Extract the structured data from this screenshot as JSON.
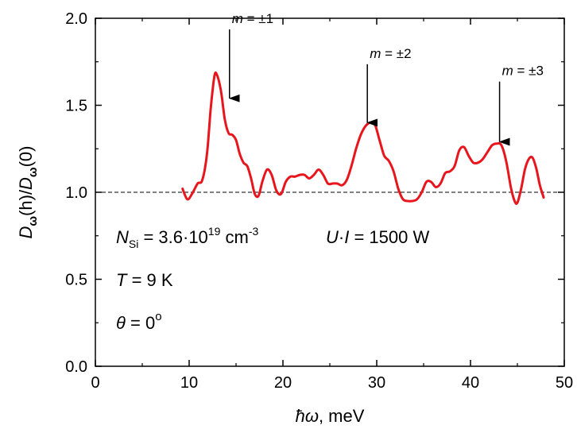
{
  "chart_data": {
    "type": "line",
    "xlabel": {
      "hbar": "ħω",
      "rest": ", meV"
    },
    "ylabel": {
      "D1": "D",
      "sub1": "ω",
      "mid": "(h)/",
      "D2": "D",
      "sub2": "ω",
      "end": "(0)"
    },
    "xlim": [
      0,
      50
    ],
    "ylim": [
      0.0,
      2.0
    ],
    "xticks": [
      "0",
      "10",
      "20",
      "30",
      "40",
      "50"
    ],
    "yticks": [
      "0.0",
      "0.5",
      "1.0",
      "1.5",
      "2.0"
    ],
    "reference_line": {
      "y": 1.0,
      "style": "dashed"
    },
    "grid": false,
    "series_color": "#e8161c",
    "series": [
      {
        "x": [
          9.3,
          9.8,
          10.3,
          10.9,
          11.4,
          11.9,
          12.3,
          12.7,
          13.0,
          13.4,
          13.8,
          14.2,
          14.6,
          15.0,
          15.4,
          15.8,
          16.2,
          16.6,
          17.0,
          17.4,
          17.8,
          18.3,
          18.8,
          19.3,
          19.8,
          20.3,
          20.8,
          21.3,
          21.8,
          22.3,
          22.8,
          23.3,
          23.8,
          24.3,
          24.8,
          25.3,
          25.8,
          26.3,
          26.8,
          27.3,
          27.8,
          28.3,
          28.8,
          29.3,
          29.8,
          30.3,
          30.8,
          31.3,
          31.8,
          32.3,
          32.8,
          33.3,
          33.8,
          34.3,
          34.8,
          35.3,
          35.8,
          36.3,
          36.8,
          37.3,
          37.8,
          38.3,
          38.8,
          39.3,
          39.8,
          40.3,
          40.8,
          41.3,
          41.8,
          42.3,
          42.8,
          43.3,
          43.8,
          44.3,
          44.7,
          45.0,
          45.4,
          45.8,
          46.2,
          46.6,
          47.0,
          47.4,
          47.8
        ],
        "y": [
          1.02,
          0.96,
          0.99,
          1.05,
          1.07,
          1.22,
          1.48,
          1.67,
          1.67,
          1.58,
          1.42,
          1.34,
          1.33,
          1.3,
          1.22,
          1.17,
          1.15,
          1.08,
          0.99,
          0.98,
          1.06,
          1.13,
          1.1,
          1.01,
          0.99,
          1.06,
          1.09,
          1.09,
          1.1,
          1.1,
          1.08,
          1.1,
          1.13,
          1.1,
          1.05,
          1.05,
          1.05,
          1.04,
          1.07,
          1.15,
          1.25,
          1.33,
          1.38,
          1.4,
          1.39,
          1.3,
          1.21,
          1.18,
          1.12,
          1.02,
          0.96,
          0.95,
          0.95,
          0.96,
          1.0,
          1.06,
          1.06,
          1.03,
          1.05,
          1.11,
          1.12,
          1.15,
          1.24,
          1.26,
          1.21,
          1.17,
          1.17,
          1.19,
          1.23,
          1.27,
          1.28,
          1.27,
          1.18,
          1.03,
          0.95,
          0.94,
          1.02,
          1.13,
          1.19,
          1.2,
          1.14,
          1.04,
          0.97
        ]
      }
    ],
    "arrows": [
      {
        "m": "m",
        "eq": " = ±1",
        "x": 14.3,
        "y_tip": 1.54,
        "y_tail": 2.0
      },
      {
        "m": "m",
        "eq": " = ±2",
        "x": 29.0,
        "y_tip": 1.4,
        "y_tail": 1.8
      },
      {
        "m": "m",
        "eq": " = ±3",
        "x": 43.1,
        "y_tip": 1.29,
        "y_tail": 1.7
      }
    ],
    "annotations": {
      "nsi": {
        "N": "N",
        "sub": "Si",
        "value": " = 3.6·10",
        "exp": "19",
        "unit": " cm",
        "unit_exp": "-3"
      },
      "ui": {
        "U": "U",
        "dot": "·",
        "I": "I",
        "value": " = 1500 W"
      },
      "temp": {
        "T": "T",
        "value": " = 9 K"
      },
      "theta": {
        "symbol": "θ",
        "value": " = 0",
        "deg": "o"
      }
    }
  }
}
